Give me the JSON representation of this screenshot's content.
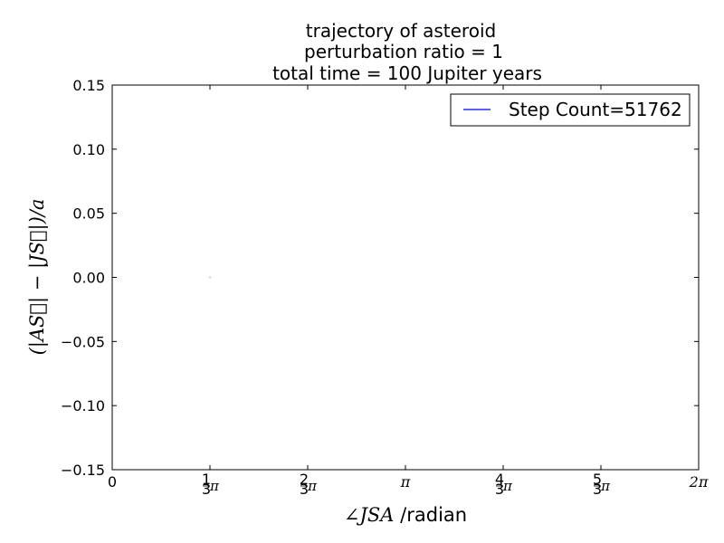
{
  "chart_data": {
    "type": "line",
    "title_lines": [
      "trajectory of asteroid",
      "perturbation ratio = 1",
      "total time = 100 Jupiter years"
    ],
    "xlabel_math": "∠JSA",
    "xlabel_text": " /radian",
    "ylabel": "(|AS⃗| − |JS⃗|)/a",
    "xlim_pi_units": [
      0,
      2
    ],
    "ylim": [
      -0.15,
      0.15
    ],
    "x_ticks": [
      {
        "value": 0,
        "label": "0"
      },
      {
        "value": 0.3333,
        "num": "1",
        "den": "3",
        "sym": "π"
      },
      {
        "value": 0.6667,
        "num": "2",
        "den": "3",
        "sym": "π"
      },
      {
        "value": 1,
        "label": "π"
      },
      {
        "value": 1.3333,
        "num": "4",
        "den": "3",
        "sym": "π"
      },
      {
        "value": 1.6667,
        "num": "5",
        "den": "3",
        "sym": "π"
      },
      {
        "value": 2,
        "label": "2π"
      }
    ],
    "y_ticks": [
      "0.15",
      "0.10",
      "0.05",
      "0.00",
      "−0.05",
      "−0.10",
      "−0.15"
    ],
    "y_tick_values": [
      0.15,
      0.1,
      0.05,
      0.0,
      -0.05,
      -0.1,
      -0.15
    ],
    "series": [
      {
        "name": "Step Count=51762",
        "color": "#0000ff",
        "x_pi_units": [
          0.3325,
          0.3342
        ],
        "y": [
          0.0,
          0.0
        ]
      }
    ],
    "legend_placement": "top-right",
    "grid": false
  }
}
